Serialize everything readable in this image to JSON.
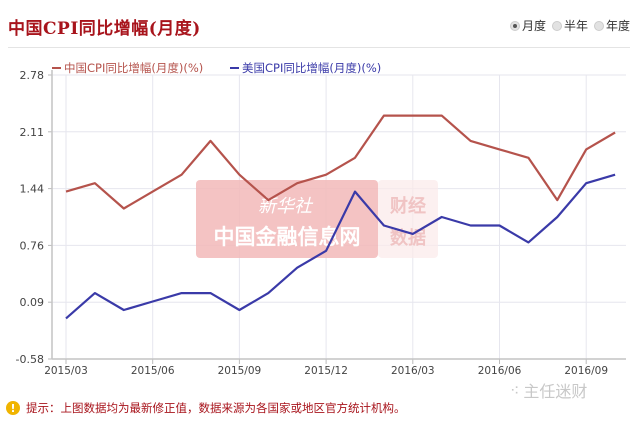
{
  "header": {
    "title": "中国CPI同比增幅(月度)",
    "period_options": [
      {
        "label": "月度",
        "selected": true
      },
      {
        "label": "半年",
        "selected": false
      },
      {
        "label": "年度",
        "selected": false
      }
    ]
  },
  "watermark": {
    "line1": "新华社",
    "line2": "中国金融信息网",
    "side1": "财经",
    "side2": "数据",
    "brand": "主任迷财"
  },
  "footer": {
    "tip": "提示：上图数据均为最新修正值，数据来源为各国家或地区官方统计机构。"
  },
  "colors": {
    "china": "#b5534c",
    "us": "#3a3aa8",
    "title": "#a8141c"
  },
  "chart_data": {
    "type": "line",
    "title": "中国CPI同比增幅(月度)",
    "xlabel": "",
    "ylabel": "",
    "ylim": [
      -0.58,
      2.78
    ],
    "yticks": [
      "2.78",
      "2.11",
      "1.44",
      "0.76",
      "0.09",
      "-0.58"
    ],
    "xticks": [
      "2015/03",
      "2015/06",
      "2015/09",
      "2015/12",
      "2016/03",
      "2016/06",
      "2016/09"
    ],
    "grid": true,
    "legend_position": "top",
    "x": [
      "2015/03",
      "2015/04",
      "2015/05",
      "2015/06",
      "2015/07",
      "2015/08",
      "2015/09",
      "2015/10",
      "2015/11",
      "2015/12",
      "2016/01",
      "2016/02",
      "2016/03",
      "2016/04",
      "2016/05",
      "2016/06",
      "2016/07",
      "2016/08",
      "2016/09",
      "2016/10"
    ],
    "series": [
      {
        "name": "中国CPI同比增幅(月度)(%)",
        "color": "#b5534c",
        "values": [
          1.4,
          1.5,
          1.2,
          1.4,
          1.6,
          2.0,
          1.6,
          1.3,
          1.5,
          1.6,
          1.8,
          2.3,
          2.3,
          2.3,
          2.0,
          1.9,
          1.8,
          1.3,
          1.9,
          2.1
        ]
      },
      {
        "name": "美国CPI同比增幅(月度)(%)",
        "color": "#3a3aa8",
        "values": [
          -0.1,
          0.2,
          0.0,
          0.1,
          0.2,
          0.2,
          0.0,
          0.2,
          0.5,
          0.7,
          1.4,
          1.0,
          0.9,
          1.1,
          1.0,
          1.0,
          0.8,
          1.1,
          1.5,
          1.6
        ]
      }
    ]
  }
}
